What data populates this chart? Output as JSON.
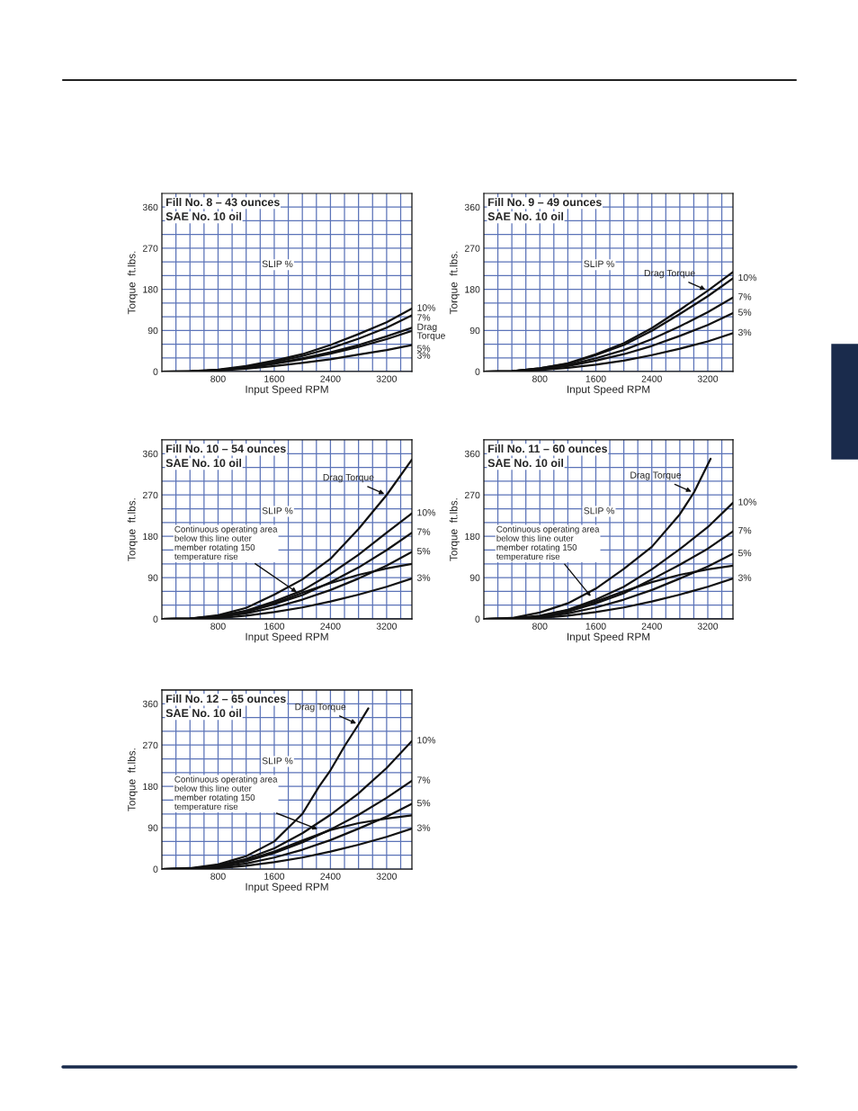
{
  "chart_data": [
    {
      "type": "line",
      "title": "Fill No. 8 – 43 ounces",
      "subtitle": "SAE No. 10 oil",
      "xlabel": "Input Speed RPM",
      "ylabel": "Torque  ft.lbs.",
      "annotations": [
        "SLIP %"
      ],
      "xlim": [
        0,
        3560
      ],
      "ylim": [
        0,
        390
      ],
      "grid": true,
      "xticks": [
        {
          "value": 200,
          "label": null
        },
        {
          "value": 400,
          "label": null
        },
        {
          "value": 600,
          "label": null
        },
        800,
        {
          "value": 1000,
          "label": null
        },
        {
          "value": 1200,
          "label": null
        },
        {
          "value": 1400,
          "label": null
        },
        1600,
        {
          "value": 1800,
          "label": null
        },
        {
          "value": 2000,
          "label": null
        },
        {
          "value": 2200,
          "label": null
        },
        2400,
        {
          "value": 2600,
          "label": null
        },
        {
          "value": 2800,
          "label": null
        },
        {
          "value": 3000,
          "label": null
        },
        3200,
        {
          "value": 3400,
          "label": null
        }
      ],
      "yticks": [
        0,
        {
          "value": 30,
          "label": null
        },
        {
          "value": 60,
          "label": null
        },
        90,
        {
          "value": 120,
          "label": null
        },
        {
          "value": 150,
          "label": null
        },
        180,
        {
          "value": 210,
          "label": null
        },
        {
          "value": 240,
          "label": null
        },
        270,
        {
          "value": 300,
          "label": null
        },
        {
          "value": 330,
          "label": null
        },
        360
      ],
      "series": [
        {
          "name": "Drag Torque",
          "color": "#111111",
          "x": [
            0,
            400,
            800,
            1200,
            1600,
            2000,
            2400,
            2800,
            3200,
            3560
          ],
          "values": [
            0,
            0,
            3,
            9,
            18,
            29,
            42,
            58,
            77,
            96
          ]
        },
        {
          "name": "10%",
          "color": "#111111",
          "x": [
            0,
            400,
            800,
            1200,
            1600,
            2000,
            2400,
            2800,
            3200,
            3560
          ],
          "values": [
            0,
            1,
            4,
            12,
            24,
            38,
            58,
            82,
            108,
            138
          ]
        },
        {
          "name": "7%",
          "color": "#111111",
          "x": [
            0,
            400,
            800,
            1200,
            1600,
            2000,
            2400,
            2800,
            3200,
            3560
          ],
          "values": [
            0,
            1,
            3,
            10,
            21,
            34,
            51,
            72,
            96,
            123
          ]
        },
        {
          "name": "5%",
          "color": "#111111",
          "x": [
            0,
            400,
            800,
            1200,
            1600,
            2000,
            2400,
            2800,
            3200,
            3560
          ],
          "values": [
            0,
            0,
            3,
            8,
            17,
            27,
            39,
            54,
            71,
            89
          ]
        },
        {
          "name": "3%",
          "color": "#111111",
          "x": [
            0,
            400,
            800,
            1200,
            1600,
            2000,
            2400,
            2800,
            3200,
            3560
          ],
          "values": [
            0,
            0,
            2,
            6,
            12,
            19,
            27,
            37,
            47,
            58
          ]
        }
      ]
    },
    {
      "type": "line",
      "title": "Fill No. 9 – 49 ounces",
      "subtitle": "SAE No. 10 oil",
      "xlabel": "Input Speed RPM",
      "ylabel": "Torque  ft.lbs.",
      "annotations": [
        "SLIP %"
      ],
      "xlim": [
        0,
        3560
      ],
      "ylim": [
        0,
        390
      ],
      "grid": true,
      "xticks": [
        {
          "value": 200,
          "label": null
        },
        {
          "value": 400,
          "label": null
        },
        {
          "value": 600,
          "label": null
        },
        800,
        {
          "value": 1000,
          "label": null
        },
        {
          "value": 1200,
          "label": null
        },
        {
          "value": 1400,
          "label": null
        },
        1600,
        {
          "value": 1800,
          "label": null
        },
        {
          "value": 2000,
          "label": null
        },
        {
          "value": 2200,
          "label": null
        },
        2400,
        {
          "value": 2600,
          "label": null
        },
        {
          "value": 2800,
          "label": null
        },
        {
          "value": 3000,
          "label": null
        },
        3200,
        {
          "value": 3400,
          "label": null
        }
      ],
      "yticks": [
        0,
        {
          "value": 30,
          "label": null
        },
        {
          "value": 60,
          "label": null
        },
        90,
        {
          "value": 120,
          "label": null
        },
        {
          "value": 150,
          "label": null
        },
        180,
        {
          "value": 210,
          "label": null
        },
        {
          "value": 240,
          "label": null
        },
        270,
        {
          "value": 300,
          "label": null
        },
        {
          "value": 330,
          "label": null
        },
        360
      ],
      "series": [
        {
          "name": "Drag Torque",
          "color": "#111111",
          "x": [
            0,
            400,
            800,
            1200,
            1600,
            2000,
            2400,
            2800,
            3200,
            3560
          ],
          "values": [
            0,
            1,
            7,
            18,
            38,
            62,
            95,
            135,
            177,
            218
          ]
        },
        {
          "name": "10%",
          "color": "#111111",
          "x": [
            0,
            400,
            800,
            1200,
            1600,
            2000,
            2400,
            2800,
            3200,
            3560
          ],
          "values": [
            0,
            1,
            7,
            17,
            36,
            58,
            89,
            126,
            165,
            204
          ]
        },
        {
          "name": "7%",
          "color": "#111111",
          "x": [
            0,
            400,
            800,
            1200,
            1600,
            2000,
            2400,
            2800,
            3200,
            3560
          ],
          "values": [
            0,
            1,
            6,
            14,
            29,
            47,
            71,
            99,
            130,
            162
          ]
        },
        {
          "name": "5%",
          "color": "#111111",
          "x": [
            0,
            400,
            800,
            1200,
            1600,
            2000,
            2400,
            2800,
            3200,
            3560
          ],
          "values": [
            0,
            1,
            5,
            12,
            24,
            38,
            56,
            78,
            102,
            128
          ]
        },
        {
          "name": "3%",
          "color": "#111111",
          "x": [
            0,
            400,
            800,
            1200,
            1600,
            2000,
            2400,
            2800,
            3200,
            3560
          ],
          "values": [
            0,
            0,
            3,
            8,
            15,
            24,
            36,
            50,
            66,
            84
          ]
        }
      ]
    },
    {
      "type": "line",
      "title": "Fill No. 10 – 54 ounces",
      "subtitle": "SAE No. 10 oil",
      "xlabel": "Input Speed RPM",
      "ylabel": "Torque  ft.lbs.",
      "annotations": [
        "SLIP %",
        {
          "text": "Continuous operating area\nbelow this line outer\nmember rotating 150\ntemperature rise",
          "x": 1950,
          "y": 55
        }
      ],
      "xlim": [
        0,
        3560
      ],
      "ylim": [
        0,
        390
      ],
      "grid": true,
      "xticks": [
        {
          "value": 200,
          "label": null
        },
        {
          "value": 400,
          "label": null
        },
        {
          "value": 600,
          "label": null
        },
        800,
        {
          "value": 1000,
          "label": null
        },
        {
          "value": 1200,
          "label": null
        },
        {
          "value": 1400,
          "label": null
        },
        1600,
        {
          "value": 1800,
          "label": null
        },
        {
          "value": 2000,
          "label": null
        },
        {
          "value": 2200,
          "label": null
        },
        2400,
        {
          "value": 2600,
          "label": null
        },
        {
          "value": 2800,
          "label": null
        },
        {
          "value": 3000,
          "label": null
        },
        3200,
        {
          "value": 3400,
          "label": null
        }
      ],
      "yticks": [
        0,
        {
          "value": 30,
          "label": null
        },
        {
          "value": 60,
          "label": null
        },
        90,
        {
          "value": 120,
          "label": null
        },
        {
          "value": 150,
          "label": null
        },
        180,
        {
          "value": 210,
          "label": null
        },
        {
          "value": 240,
          "label": null
        },
        270,
        {
          "value": 300,
          "label": null
        },
        {
          "value": 330,
          "label": null
        },
        360
      ],
      "series": [
        {
          "name": "Drag Torque",
          "color": "#111111",
          "x": [
            0,
            400,
            800,
            1200,
            1600,
            2000,
            2400,
            2800,
            3200,
            3560
          ],
          "values": [
            0,
            1,
            8,
            24,
            53,
            86,
            131,
            196,
            270,
            347
          ]
        },
        {
          "name": "10%",
          "color": "#111111",
          "x": [
            0,
            400,
            800,
            1200,
            1600,
            2000,
            2400,
            2800,
            3200,
            3560
          ],
          "values": [
            0,
            1,
            6,
            18,
            38,
            62,
            98,
            140,
            188,
            230
          ]
        },
        {
          "name": "7%",
          "color": "#111111",
          "x": [
            0,
            400,
            800,
            1200,
            1600,
            2000,
            2400,
            2800,
            3200,
            3560
          ],
          "values": [
            0,
            1,
            5,
            15,
            32,
            52,
            80,
            112,
            150,
            188
          ]
        },
        {
          "name": "5%",
          "color": "#111111",
          "x": [
            0,
            400,
            800,
            1200,
            1600,
            2000,
            2400,
            2800,
            3200,
            3560
          ],
          "values": [
            0,
            1,
            4,
            12,
            25,
            42,
            63,
            88,
            116,
            146
          ]
        },
        {
          "name": "3%",
          "color": "#111111",
          "x": [
            0,
            400,
            800,
            1200,
            1600,
            2000,
            2400,
            2800,
            3200,
            3560
          ],
          "values": [
            0,
            0,
            2,
            7,
            15,
            25,
            38,
            53,
            70,
            88
          ]
        },
        {
          "color": "#111111",
          "x": [
            0,
            400,
            800,
            1200,
            1600,
            2000,
            2400,
            2800,
            3200,
            3560
          ],
          "values": [
            0,
            1,
            5,
            17,
            34,
            57,
            78,
            96,
            110,
            120
          ]
        }
      ]
    },
    {
      "type": "line",
      "title": "Fill No. 11 – 60 ounces",
      "subtitle": "SAE No. 10 oil",
      "xlabel": "Input Speed RPM",
      "ylabel": "Torque  ft.lbs.",
      "annotations": [
        "SLIP %",
        {
          "text": "Continuous operating area\nbelow this line outer\nmember rotating 150\ntemperature rise",
          "x": 1550,
          "y": 45
        }
      ],
      "xlim": [
        0,
        3560
      ],
      "ylim": [
        0,
        390
      ],
      "grid": true,
      "xticks": [
        {
          "value": 200,
          "label": null
        },
        {
          "value": 400,
          "label": null
        },
        {
          "value": 600,
          "label": null
        },
        800,
        {
          "value": 1000,
          "label": null
        },
        {
          "value": 1200,
          "label": null
        },
        {
          "value": 1400,
          "label": null
        },
        1600,
        {
          "value": 1800,
          "label": null
        },
        {
          "value": 2000,
          "label": null
        },
        {
          "value": 2200,
          "label": null
        },
        2400,
        {
          "value": 2600,
          "label": null
        },
        {
          "value": 2800,
          "label": null
        },
        {
          "value": 3000,
          "label": null
        },
        3200,
        {
          "value": 3400,
          "label": null
        }
      ],
      "yticks": [
        0,
        {
          "value": 30,
          "label": null
        },
        {
          "value": 60,
          "label": null
        },
        90,
        {
          "value": 120,
          "label": null
        },
        {
          "value": 150,
          "label": null
        },
        180,
        {
          "value": 210,
          "label": null
        },
        {
          "value": 240,
          "label": null
        },
        270,
        {
          "value": 300,
          "label": null
        },
        {
          "value": 330,
          "label": null
        },
        360
      ],
      "series": [
        {
          "name": "Drag Torque",
          "color": "#111111",
          "x": [
            0,
            400,
            800,
            1200,
            1600,
            2000,
            2400,
            2800,
            3000,
            3240
          ],
          "values": [
            0,
            2,
            14,
            34,
            66,
            109,
            157,
            228,
            275,
            349
          ]
        },
        {
          "name": "10%",
          "color": "#111111",
          "x": [
            0,
            400,
            800,
            1200,
            1600,
            2000,
            2400,
            2800,
            3200,
            3560
          ],
          "values": [
            0,
            1,
            7,
            20,
            42,
            70,
            108,
            152,
            200,
            253
          ]
        },
        {
          "name": "7%",
          "color": "#111111",
          "x": [
            0,
            400,
            800,
            1200,
            1600,
            2000,
            2400,
            2800,
            3200,
            3560
          ],
          "values": [
            0,
            1,
            5,
            16,
            34,
            56,
            86,
            118,
            153,
            191
          ]
        },
        {
          "name": "5%",
          "color": "#111111",
          "x": [
            0,
            400,
            800,
            1200,
            1600,
            2000,
            2400,
            2800,
            3200,
            3560
          ],
          "values": [
            0,
            1,
            4,
            12,
            25,
            42,
            63,
            88,
            114,
            142
          ]
        },
        {
          "name": "3%",
          "color": "#111111",
          "x": [
            0,
            400,
            800,
            1200,
            1600,
            2000,
            2400,
            2800,
            3200,
            3560
          ],
          "values": [
            0,
            0,
            2,
            7,
            15,
            25,
            38,
            53,
            70,
            88
          ]
        },
        {
          "color": "#111111",
          "x": [
            0,
            400,
            800,
            1200,
            1600,
            2000,
            2400,
            2800,
            3200,
            3560
          ],
          "values": [
            0,
            1,
            6,
            19,
            38,
            60,
            80,
            96,
            108,
            116
          ]
        }
      ]
    },
    {
      "type": "line",
      "title": "Fill No. 12 – 65 ounces",
      "subtitle": "SAE No. 10 oil",
      "xlabel": "Input Speed RPM",
      "ylabel": "Torque  ft.lbs.",
      "annotations": [
        "SLIP %",
        {
          "text": "Continuous operating area\nbelow this line outer\nmember rotating 150\ntemperature rise",
          "x": 2250,
          "y": 85
        }
      ],
      "xlim": [
        0,
        3560
      ],
      "ylim": [
        0,
        390
      ],
      "grid": true,
      "xticks": [
        {
          "value": 200,
          "label": null
        },
        {
          "value": 400,
          "label": null
        },
        {
          "value": 600,
          "label": null
        },
        800,
        {
          "value": 1000,
          "label": null
        },
        {
          "value": 1200,
          "label": null
        },
        {
          "value": 1400,
          "label": null
        },
        1600,
        {
          "value": 1800,
          "label": null
        },
        {
          "value": 2000,
          "label": null
        },
        {
          "value": 2200,
          "label": null
        },
        2400,
        {
          "value": 2600,
          "label": null
        },
        {
          "value": 2800,
          "label": null
        },
        {
          "value": 3000,
          "label": null
        },
        3200,
        {
          "value": 3400,
          "label": null
        }
      ],
      "yticks": [
        0,
        {
          "value": 30,
          "label": null
        },
        {
          "value": 60,
          "label": null
        },
        90,
        {
          "value": 120,
          "label": null
        },
        {
          "value": 150,
          "label": null
        },
        180,
        {
          "value": 210,
          "label": null
        },
        {
          "value": 240,
          "label": null
        },
        270,
        {
          "value": 300,
          "label": null
        },
        {
          "value": 330,
          "label": null
        },
        360
      ],
      "series": [
        {
          "name": "Drag Torque",
          "color": "#111111",
          "x": [
            0,
            400,
            800,
            1200,
            1600,
            1800,
            2000,
            2240,
            2400,
            2610,
            2800,
            2940
          ],
          "values": [
            0,
            2,
            10,
            28,
            60,
            90,
            120,
            180,
            215,
            270,
            315,
            350
          ]
        },
        {
          "name": "10%",
          "color": "#111111",
          "x": [
            0,
            400,
            800,
            1200,
            1600,
            2000,
            2400,
            2800,
            3200,
            3560
          ],
          "values": [
            0,
            1,
            8,
            22,
            45,
            78,
            118,
            165,
            220,
            279
          ]
        },
        {
          "name": "7%",
          "color": "#111111",
          "x": [
            0,
            400,
            800,
            1200,
            1600,
            2000,
            2400,
            2800,
            3200,
            3560
          ],
          "values": [
            0,
            1,
            6,
            17,
            35,
            58,
            86,
            118,
            155,
            192
          ]
        },
        {
          "name": "5%",
          "color": "#111111",
          "x": [
            0,
            400,
            800,
            1200,
            1600,
            2000,
            2400,
            2800,
            3200,
            3560
          ],
          "values": [
            0,
            1,
            4,
            12,
            25,
            42,
            63,
            88,
            114,
            142
          ]
        },
        {
          "name": "3%",
          "color": "#111111",
          "x": [
            0,
            400,
            800,
            1200,
            1600,
            2000,
            2400,
            2800,
            3200,
            3560
          ],
          "values": [
            0,
            0,
            2,
            7,
            15,
            25,
            38,
            53,
            70,
            88
          ]
        },
        {
          "color": "#111111",
          "x": [
            0,
            400,
            800,
            1200,
            1600,
            2000,
            2400,
            2800,
            3200,
            3560
          ],
          "values": [
            0,
            1,
            6,
            19,
            38,
            62,
            85,
            100,
            110,
            117
          ]
        }
      ]
    }
  ]
}
